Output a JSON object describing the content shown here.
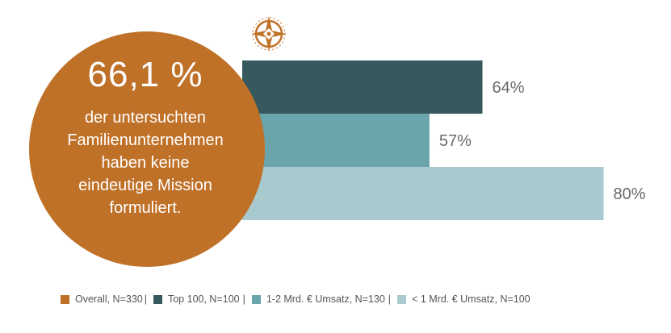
{
  "chart_data": {
    "type": "bar",
    "orientation": "horizontal",
    "series": [
      {
        "name": "Overall, N=330",
        "value": 66.1,
        "color": "#BF7128",
        "display": "circle"
      },
      {
        "name": "Top 100, N=100",
        "value": 64,
        "label": "64%",
        "color": "#37595D"
      },
      {
        "name": "1-2 Mrd. € Umsatz, N=130",
        "value": 57,
        "label": "57%",
        "color": "#6BA5AC"
      },
      {
        "name": "< 1 Mrd. € Umsatz, N=100",
        "value": 80,
        "label": "80%",
        "color": "#A8C9CD"
      }
    ],
    "xlim": [
      0,
      100
    ],
    "grid": false,
    "legend_position": "bottom"
  },
  "highlight": {
    "value": "66,1 %",
    "caption_lines": [
      "der untersuchten",
      "Familienunternehmen",
      "haben keine",
      "eindeutige Mission",
      "formuliert."
    ]
  },
  "legend": {
    "items": [
      "Overall, N=330",
      "Top 100, N=100",
      "1-2 Mrd. € Umsatz, N=130",
      "< 1 Mrd. € Umsatz, N=100"
    ],
    "separator": "|"
  },
  "icons": {
    "compass": "compass-rose-icon"
  }
}
